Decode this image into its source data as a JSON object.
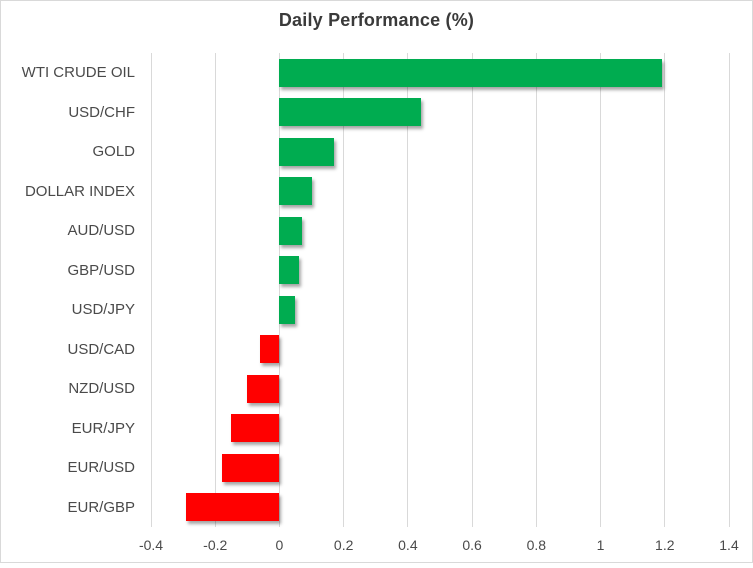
{
  "chart_data": {
    "type": "bar",
    "orientation": "horizontal",
    "title": "Daily Performance (%)",
    "categories": [
      "WTI CRUDE OIL",
      "USD/CHF",
      "GOLD",
      "DOLLAR INDEX",
      "AUD/USD",
      "GBP/USD",
      "USD/JPY",
      "USD/CAD",
      "NZD/USD",
      "EUR/JPY",
      "EUR/USD",
      "EUR/GBP"
    ],
    "values": [
      1.19,
      0.44,
      0.17,
      0.1,
      0.07,
      0.06,
      0.05,
      -0.06,
      -0.1,
      -0.15,
      -0.18,
      -0.29
    ],
    "xlabel": "",
    "ylabel": "",
    "xlim": [
      -0.4,
      1.4
    ],
    "x_tick_labels": [
      "-0.4",
      "-0.2",
      "0",
      "0.2",
      "0.4",
      "0.6",
      "0.8",
      "1",
      "1.2",
      "1.4"
    ],
    "x_tick_values": [
      -0.4,
      -0.2,
      0,
      0.2,
      0.4,
      0.6,
      0.8,
      1,
      1.2,
      1.4
    ],
    "grid": "vertical-on",
    "legend": "none",
    "colors": {
      "positive": "#00AC50",
      "negative": "#FF0000",
      "gridline": "#D9D9D9",
      "border": "#D9D9D9",
      "background": "#FFFFFF",
      "title_text": "#3A3A3A",
      "axis_text": "#4A4A4A"
    }
  }
}
